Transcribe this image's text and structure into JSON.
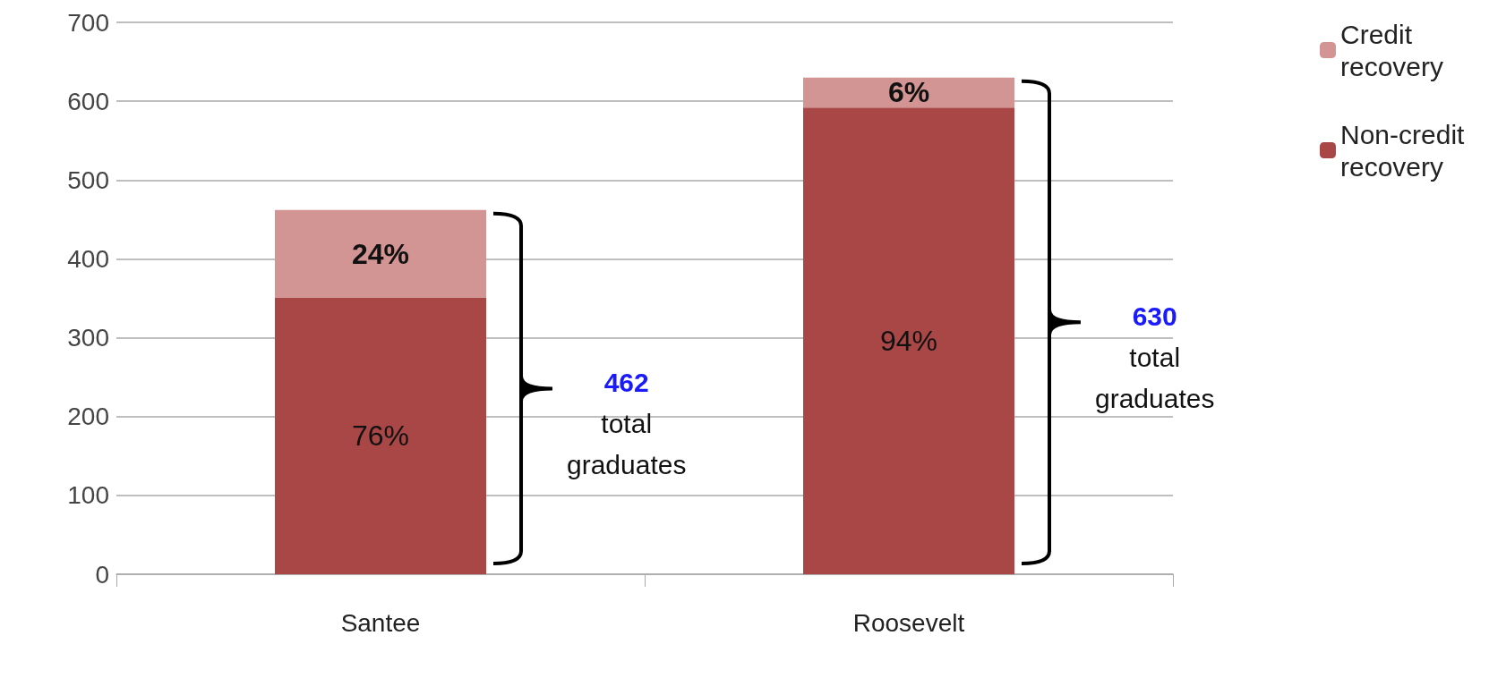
{
  "chart_data": {
    "type": "bar",
    "stacked": true,
    "categories": [
      "Santee",
      "Roosevelt"
    ],
    "series": [
      {
        "name": "Non-credit recovery",
        "color": "#a84745",
        "values": [
          351,
          592
        ]
      },
      {
        "name": "Credit recovery",
        "color": "#d39593",
        "values": [
          111,
          38
        ]
      }
    ],
    "ylim": [
      0,
      700
    ],
    "yticks": [
      0,
      100,
      200,
      300,
      400,
      500,
      600,
      700
    ],
    "grid": "y",
    "legend": "top right",
    "annotations": [
      "462 total graduates",
      "630 total graduates",
      "76%",
      "24%",
      "94%",
      "6%"
    ]
  }
}
